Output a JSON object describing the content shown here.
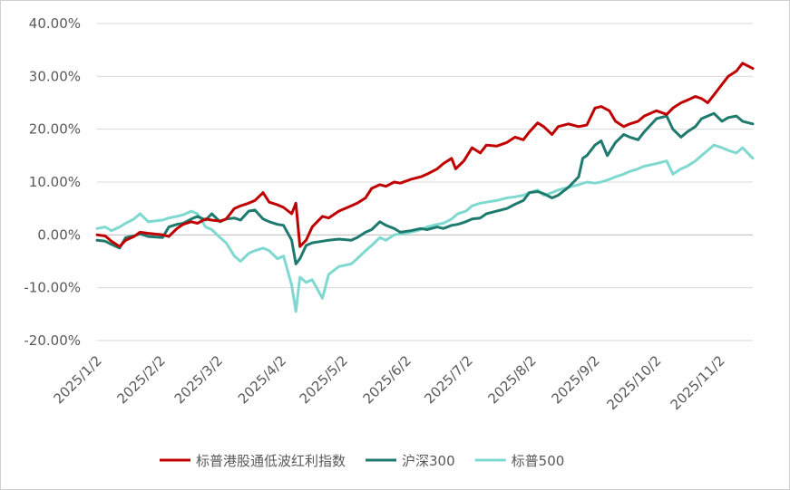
{
  "chart_data": {
    "type": "line",
    "y_ticks": [
      "40.00%",
      "30.00%",
      "20.00%",
      "10.00%",
      "0.00%",
      "-10.00%",
      "-20.00%"
    ],
    "ylim": [
      -0.2,
      0.4
    ],
    "x_ticks": [
      "2025/1/2",
      "2025/2/2",
      "2025/3/2",
      "2025/4/2",
      "2025/5/2",
      "2025/6/2",
      "2025/7/2",
      "2025/8/2",
      "2025/9/2",
      "2025/10/2",
      "2025/11/2"
    ],
    "xlim": [
      "2025-01-02",
      "2025-11-18"
    ],
    "grid": "horizontal",
    "legend_position": "bottom",
    "series": [
      {
        "name": "标普港股通低波红利指数",
        "color": "#C00000",
        "points": [
          [
            "2025-01-02",
            0.0
          ],
          [
            "2025-01-06",
            -0.002
          ],
          [
            "2025-01-09",
            -0.012
          ],
          [
            "2025-01-13",
            -0.022
          ],
          [
            "2025-01-16",
            -0.01
          ],
          [
            "2025-01-20",
            -0.003
          ],
          [
            "2025-01-23",
            0.005
          ],
          [
            "2025-01-27",
            0.003
          ],
          [
            "2025-02-03",
            0.0
          ],
          [
            "2025-02-06",
            -0.003
          ],
          [
            "2025-02-10",
            0.012
          ],
          [
            "2025-02-13",
            0.02
          ],
          [
            "2025-02-17",
            0.025
          ],
          [
            "2025-02-20",
            0.022
          ],
          [
            "2025-02-24",
            0.03
          ],
          [
            "2025-02-27",
            0.028
          ],
          [
            "2025-03-03",
            0.026
          ],
          [
            "2025-03-06",
            0.03
          ],
          [
            "2025-03-10",
            0.05
          ],
          [
            "2025-03-13",
            0.055
          ],
          [
            "2025-03-17",
            0.06
          ],
          [
            "2025-03-20",
            0.065
          ],
          [
            "2025-03-24",
            0.08
          ],
          [
            "2025-03-27",
            0.062
          ],
          [
            "2025-03-31",
            0.057
          ],
          [
            "2025-04-03",
            0.052
          ],
          [
            "2025-04-07",
            0.04
          ],
          [
            "2025-04-09",
            0.06
          ],
          [
            "2025-04-11",
            -0.022
          ],
          [
            "2025-04-14",
            -0.01
          ],
          [
            "2025-04-17",
            0.015
          ],
          [
            "2025-04-22",
            0.035
          ],
          [
            "2025-04-25",
            0.032
          ],
          [
            "2025-04-30",
            0.045
          ],
          [
            "2025-05-06",
            0.055
          ],
          [
            "2025-05-09",
            0.06
          ],
          [
            "2025-05-13",
            0.07
          ],
          [
            "2025-05-16",
            0.088
          ],
          [
            "2025-05-20",
            0.095
          ],
          [
            "2025-05-23",
            0.092
          ],
          [
            "2025-05-27",
            0.1
          ],
          [
            "2025-05-30",
            0.098
          ],
          [
            "2025-06-04",
            0.105
          ],
          [
            "2025-06-09",
            0.11
          ],
          [
            "2025-06-12",
            0.115
          ],
          [
            "2025-06-17",
            0.125
          ],
          [
            "2025-06-20",
            0.135
          ],
          [
            "2025-06-24",
            0.145
          ],
          [
            "2025-06-26",
            0.125
          ],
          [
            "2025-06-30",
            0.14
          ],
          [
            "2025-07-04",
            0.165
          ],
          [
            "2025-07-08",
            0.155
          ],
          [
            "2025-07-11",
            0.17
          ],
          [
            "2025-07-16",
            0.168
          ],
          [
            "2025-07-21",
            0.175
          ],
          [
            "2025-07-25",
            0.185
          ],
          [
            "2025-07-29",
            0.18
          ],
          [
            "2025-08-01",
            0.195
          ],
          [
            "2025-08-05",
            0.212
          ],
          [
            "2025-08-08",
            0.205
          ],
          [
            "2025-08-12",
            0.19
          ],
          [
            "2025-08-15",
            0.205
          ],
          [
            "2025-08-20",
            0.21
          ],
          [
            "2025-08-25",
            0.205
          ],
          [
            "2025-08-29",
            0.208
          ],
          [
            "2025-09-02",
            0.24
          ],
          [
            "2025-09-05",
            0.243
          ],
          [
            "2025-09-09",
            0.235
          ],
          [
            "2025-09-12",
            0.215
          ],
          [
            "2025-09-16",
            0.205
          ],
          [
            "2025-09-19",
            0.21
          ],
          [
            "2025-09-23",
            0.215
          ],
          [
            "2025-09-26",
            0.225
          ],
          [
            "2025-10-02",
            0.235
          ],
          [
            "2025-10-07",
            0.228
          ],
          [
            "2025-10-10",
            0.24
          ],
          [
            "2025-10-14",
            0.25
          ],
          [
            "2025-10-17",
            0.255
          ],
          [
            "2025-10-21",
            0.262
          ],
          [
            "2025-10-24",
            0.258
          ],
          [
            "2025-10-27",
            0.25
          ],
          [
            "2025-10-30",
            0.265
          ],
          [
            "2025-11-03",
            0.285
          ],
          [
            "2025-11-06",
            0.3
          ],
          [
            "2025-11-10",
            0.31
          ],
          [
            "2025-11-13",
            0.325
          ],
          [
            "2025-11-18",
            0.315
          ]
        ]
      },
      {
        "name": "沪深300",
        "color": "#1F7A6E",
        "points": [
          [
            "2025-01-02",
            -0.01
          ],
          [
            "2025-01-06",
            -0.012
          ],
          [
            "2025-01-09",
            -0.018
          ],
          [
            "2025-01-13",
            -0.025
          ],
          [
            "2025-01-16",
            -0.005
          ],
          [
            "2025-01-20",
            -0.002
          ],
          [
            "2025-01-23",
            0.002
          ],
          [
            "2025-01-27",
            -0.003
          ],
          [
            "2025-02-03",
            -0.005
          ],
          [
            "2025-02-06",
            0.015
          ],
          [
            "2025-02-10",
            0.02
          ],
          [
            "2025-02-13",
            0.022
          ],
          [
            "2025-02-17",
            0.03
          ],
          [
            "2025-02-20",
            0.035
          ],
          [
            "2025-02-24",
            0.028
          ],
          [
            "2025-02-27",
            0.04
          ],
          [
            "2025-03-03",
            0.025
          ],
          [
            "2025-03-06",
            0.03
          ],
          [
            "2025-03-10",
            0.032
          ],
          [
            "2025-03-13",
            0.028
          ],
          [
            "2025-03-17",
            0.045
          ],
          [
            "2025-03-20",
            0.047
          ],
          [
            "2025-03-24",
            0.03
          ],
          [
            "2025-03-27",
            0.025
          ],
          [
            "2025-03-31",
            0.02
          ],
          [
            "2025-04-03",
            0.018
          ],
          [
            "2025-04-07",
            -0.01
          ],
          [
            "2025-04-09",
            -0.055
          ],
          [
            "2025-04-11",
            -0.045
          ],
          [
            "2025-04-14",
            -0.02
          ],
          [
            "2025-04-17",
            -0.015
          ],
          [
            "2025-04-22",
            -0.012
          ],
          [
            "2025-04-25",
            -0.01
          ],
          [
            "2025-04-30",
            -0.008
          ],
          [
            "2025-05-06",
            -0.01
          ],
          [
            "2025-05-09",
            -0.005
          ],
          [
            "2025-05-13",
            0.005
          ],
          [
            "2025-05-16",
            0.01
          ],
          [
            "2025-05-20",
            0.025
          ],
          [
            "2025-05-23",
            0.018
          ],
          [
            "2025-05-27",
            0.012
          ],
          [
            "2025-05-30",
            0.005
          ],
          [
            "2025-06-04",
            0.008
          ],
          [
            "2025-06-09",
            0.012
          ],
          [
            "2025-06-12",
            0.01
          ],
          [
            "2025-06-17",
            0.015
          ],
          [
            "2025-06-20",
            0.012
          ],
          [
            "2025-06-24",
            0.018
          ],
          [
            "2025-06-27",
            0.02
          ],
          [
            "2025-07-01",
            0.025
          ],
          [
            "2025-07-04",
            0.03
          ],
          [
            "2025-07-08",
            0.032
          ],
          [
            "2025-07-11",
            0.04
          ],
          [
            "2025-07-16",
            0.045
          ],
          [
            "2025-07-21",
            0.05
          ],
          [
            "2025-07-25",
            0.058
          ],
          [
            "2025-07-29",
            0.065
          ],
          [
            "2025-08-01",
            0.08
          ],
          [
            "2025-08-05",
            0.082
          ],
          [
            "2025-08-08",
            0.078
          ],
          [
            "2025-08-12",
            0.07
          ],
          [
            "2025-08-15",
            0.075
          ],
          [
            "2025-08-20",
            0.09
          ],
          [
            "2025-08-25",
            0.11
          ],
          [
            "2025-08-27",
            0.145
          ],
          [
            "2025-08-29",
            0.15
          ],
          [
            "2025-09-02",
            0.17
          ],
          [
            "2025-09-05",
            0.178
          ],
          [
            "2025-09-08",
            0.15
          ],
          [
            "2025-09-12",
            0.175
          ],
          [
            "2025-09-16",
            0.19
          ],
          [
            "2025-09-19",
            0.185
          ],
          [
            "2025-09-23",
            0.18
          ],
          [
            "2025-09-26",
            0.195
          ],
          [
            "2025-10-02",
            0.22
          ],
          [
            "2025-10-07",
            0.225
          ],
          [
            "2025-10-10",
            0.2
          ],
          [
            "2025-10-14",
            0.185
          ],
          [
            "2025-10-17",
            0.195
          ],
          [
            "2025-10-21",
            0.205
          ],
          [
            "2025-10-24",
            0.22
          ],
          [
            "2025-10-27",
            0.225
          ],
          [
            "2025-10-30",
            0.23
          ],
          [
            "2025-11-03",
            0.215
          ],
          [
            "2025-11-06",
            0.222
          ],
          [
            "2025-11-10",
            0.225
          ],
          [
            "2025-11-13",
            0.215
          ],
          [
            "2025-11-18",
            0.21
          ]
        ]
      },
      {
        "name": "标普500",
        "color": "#7FD9D0",
        "points": [
          [
            "2025-01-02",
            0.012
          ],
          [
            "2025-01-06",
            0.015
          ],
          [
            "2025-01-09",
            0.008
          ],
          [
            "2025-01-13",
            0.015
          ],
          [
            "2025-01-16",
            0.022
          ],
          [
            "2025-01-20",
            0.03
          ],
          [
            "2025-01-23",
            0.04
          ],
          [
            "2025-01-27",
            0.025
          ],
          [
            "2025-02-03",
            0.028
          ],
          [
            "2025-02-06",
            0.032
          ],
          [
            "2025-02-10",
            0.035
          ],
          [
            "2025-02-13",
            0.038
          ],
          [
            "2025-02-17",
            0.045
          ],
          [
            "2025-02-20",
            0.04
          ],
          [
            "2025-02-24",
            0.015
          ],
          [
            "2025-02-27",
            0.01
          ],
          [
            "2025-03-03",
            -0.005
          ],
          [
            "2025-03-06",
            -0.015
          ],
          [
            "2025-03-10",
            -0.04
          ],
          [
            "2025-03-13",
            -0.05
          ],
          [
            "2025-03-17",
            -0.035
          ],
          [
            "2025-03-20",
            -0.03
          ],
          [
            "2025-03-24",
            -0.025
          ],
          [
            "2025-03-27",
            -0.03
          ],
          [
            "2025-03-31",
            -0.045
          ],
          [
            "2025-04-03",
            -0.04
          ],
          [
            "2025-04-07",
            -0.095
          ],
          [
            "2025-04-09",
            -0.145
          ],
          [
            "2025-04-11",
            -0.08
          ],
          [
            "2025-04-14",
            -0.09
          ],
          [
            "2025-04-17",
            -0.085
          ],
          [
            "2025-04-22",
            -0.12
          ],
          [
            "2025-04-25",
            -0.075
          ],
          [
            "2025-04-30",
            -0.06
          ],
          [
            "2025-05-06",
            -0.055
          ],
          [
            "2025-05-09",
            -0.045
          ],
          [
            "2025-05-13",
            -0.03
          ],
          [
            "2025-05-16",
            -0.02
          ],
          [
            "2025-05-20",
            -0.005
          ],
          [
            "2025-05-23",
            -0.01
          ],
          [
            "2025-05-27",
            0.0
          ],
          [
            "2025-05-30",
            0.002
          ],
          [
            "2025-06-04",
            0.005
          ],
          [
            "2025-06-09",
            0.01
          ],
          [
            "2025-06-12",
            0.015
          ],
          [
            "2025-06-17",
            0.02
          ],
          [
            "2025-06-20",
            0.022
          ],
          [
            "2025-06-24",
            0.03
          ],
          [
            "2025-06-27",
            0.04
          ],
          [
            "2025-07-01",
            0.045
          ],
          [
            "2025-07-04",
            0.055
          ],
          [
            "2025-07-08",
            0.06
          ],
          [
            "2025-07-11",
            0.062
          ],
          [
            "2025-07-16",
            0.065
          ],
          [
            "2025-07-21",
            0.07
          ],
          [
            "2025-07-25",
            0.072
          ],
          [
            "2025-07-29",
            0.075
          ],
          [
            "2025-08-01",
            0.08
          ],
          [
            "2025-08-05",
            0.085
          ],
          [
            "2025-08-08",
            0.075
          ],
          [
            "2025-08-12",
            0.08
          ],
          [
            "2025-08-15",
            0.085
          ],
          [
            "2025-08-20",
            0.09
          ],
          [
            "2025-08-25",
            0.095
          ],
          [
            "2025-08-29",
            0.1
          ],
          [
            "2025-09-02",
            0.098
          ],
          [
            "2025-09-05",
            0.1
          ],
          [
            "2025-09-09",
            0.105
          ],
          [
            "2025-09-12",
            0.11
          ],
          [
            "2025-09-16",
            0.115
          ],
          [
            "2025-09-19",
            0.12
          ],
          [
            "2025-09-23",
            0.125
          ],
          [
            "2025-09-26",
            0.13
          ],
          [
            "2025-10-02",
            0.135
          ],
          [
            "2025-10-07",
            0.14
          ],
          [
            "2025-10-10",
            0.115
          ],
          [
            "2025-10-14",
            0.125
          ],
          [
            "2025-10-17",
            0.13
          ],
          [
            "2025-10-21",
            0.14
          ],
          [
            "2025-10-24",
            0.15
          ],
          [
            "2025-10-27",
            0.16
          ],
          [
            "2025-10-30",
            0.17
          ],
          [
            "2025-11-03",
            0.165
          ],
          [
            "2025-11-06",
            0.16
          ],
          [
            "2025-11-10",
            0.155
          ],
          [
            "2025-11-13",
            0.165
          ],
          [
            "2025-11-18",
            0.145
          ]
        ]
      }
    ]
  }
}
